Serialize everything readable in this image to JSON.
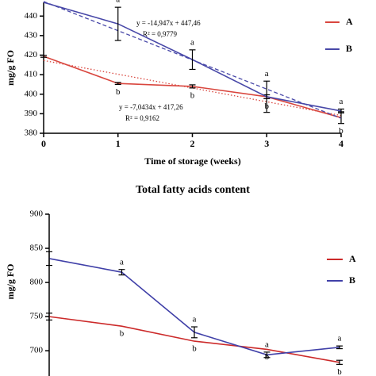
{
  "chart_data": [
    {
      "type": "line",
      "y_label": "mg/g FO",
      "x_label": "Time of storage (weeks)",
      "x": [
        0,
        1,
        2,
        3,
        4
      ],
      "xlim": [
        0,
        4
      ],
      "xticks": [
        0,
        1,
        2,
        3,
        4
      ],
      "ylim": [
        380,
        447
      ],
      "yticks": [
        380,
        390,
        400,
        410,
        420,
        430,
        440
      ],
      "series": [
        {
          "name": "A",
          "color": "#d9463e",
          "values": [
            419.4,
            405.5,
            404,
            398.7,
            388
          ],
          "errors": [
            0.5,
            0.5,
            0.8,
            1,
            3
          ],
          "trendline": {
            "slope": -7.0434,
            "intercept": 417.26,
            "equation": "y = -7,0434x + 417,26",
            "r2": "R² = 0,9162",
            "style": "dotted"
          }
        },
        {
          "name": "B",
          "color": "#4848a8",
          "values": [
            447,
            436,
            417.7,
            398.7,
            391.4
          ],
          "errors": [
            0,
            8.5,
            5,
            8,
            1
          ],
          "trendline": {
            "slope": -14.947,
            "intercept": 447.46,
            "equation": "y = -14,947x + 447,46",
            "r2": "R² = 0,9779",
            "style": "dashed"
          }
        }
      ],
      "annotations": [
        {
          "x": 1,
          "text": "a",
          "pos": "above",
          "series": 1
        },
        {
          "x": 1,
          "text": "b",
          "pos": "below",
          "series": 0
        },
        {
          "x": 2,
          "text": "a",
          "pos": "above",
          "series": 1
        },
        {
          "x": 2,
          "text": "b",
          "pos": "below",
          "series": 0
        },
        {
          "x": 3,
          "text": "a",
          "pos": "above",
          "series": 1
        },
        {
          "x": 3,
          "text": "b",
          "pos": "below",
          "series": 0
        },
        {
          "x": 4,
          "text": "a",
          "pos": "above",
          "series": 1
        },
        {
          "x": 4,
          "text": "b",
          "pos": "below",
          "series": 0
        }
      ]
    },
    {
      "type": "line",
      "title": "Total fatty acids content",
      "y_label": "mg/g FO",
      "x": [
        0,
        1,
        2,
        3,
        4
      ],
      "xlim": [
        0,
        4
      ],
      "ylim": [
        663,
        900
      ],
      "yticks": [
        700,
        750,
        800,
        850,
        900
      ],
      "series": [
        {
          "name": "A",
          "color": "#cc2a2a",
          "values": [
            750,
            736,
            714,
            702,
            683
          ],
          "errors": [
            5,
            0,
            0,
            0,
            3
          ]
        },
        {
          "name": "B",
          "color": "#4040a8",
          "values": [
            835,
            815,
            727,
            694,
            705
          ],
          "errors": [
            10,
            4,
            8,
            4,
            2
          ]
        }
      ],
      "annotations": [
        {
          "x": 1,
          "text": "a",
          "pos": "above",
          "series": 1
        },
        {
          "x": 1,
          "text": "b",
          "pos": "below",
          "series": 0
        },
        {
          "x": 2,
          "text": "a",
          "pos": "above",
          "series": 1
        },
        {
          "x": 2,
          "text": "b",
          "pos": "below",
          "series": 0
        },
        {
          "x": 3,
          "text": "a",
          "pos": "above",
          "series": 1
        },
        {
          "x": 3,
          "text": "b",
          "pos": "below",
          "series": 0
        },
        {
          "x": 4,
          "text": "a",
          "pos": "above",
          "series": 1
        },
        {
          "x": 4,
          "text": "b",
          "pos": "below",
          "series": 0
        }
      ]
    }
  ]
}
